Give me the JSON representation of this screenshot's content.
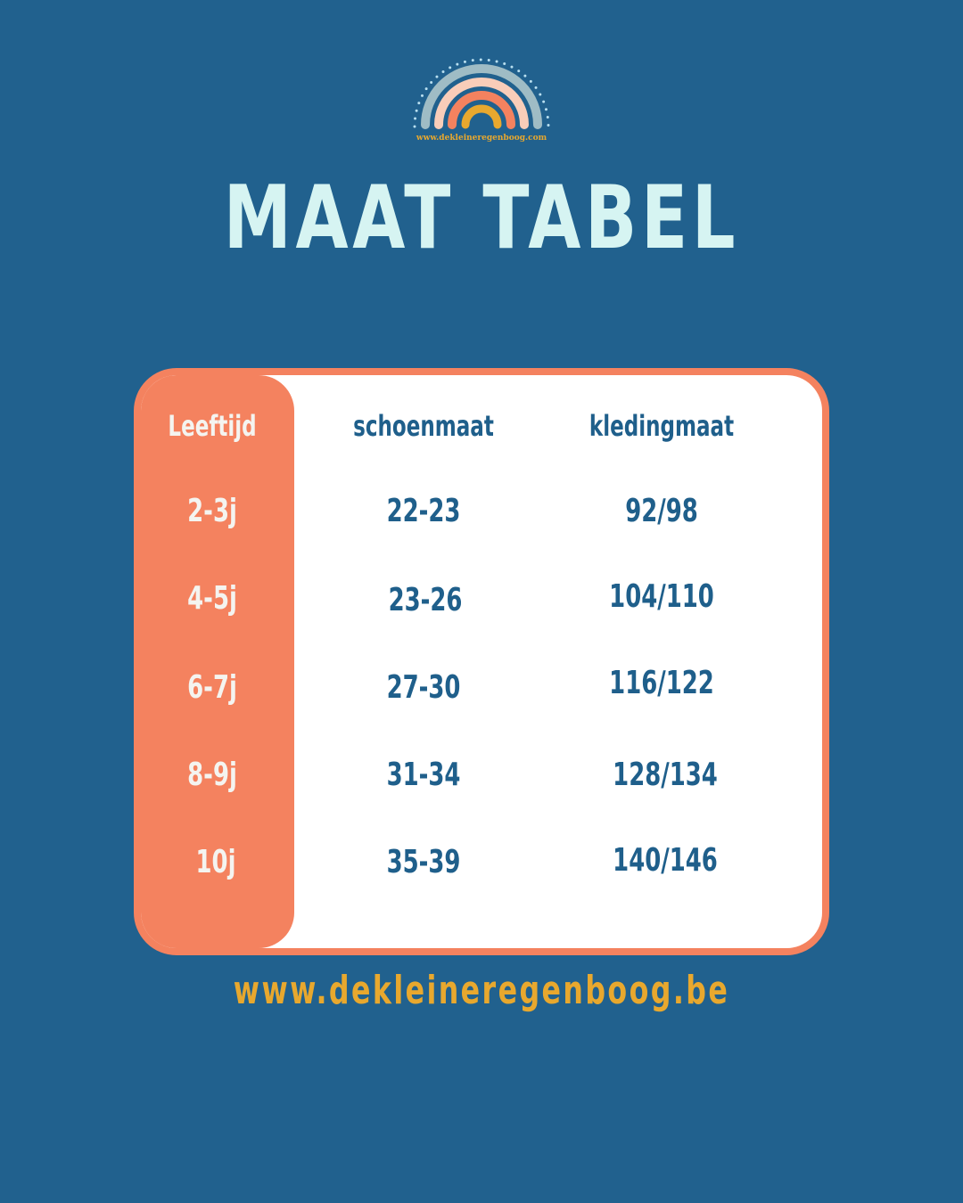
{
  "logo": {
    "text": "www.dekleineregenboog.com",
    "colors": [
      "#9fbcc5",
      "#f9cdb9",
      "#f4825f",
      "#e8a82e"
    ]
  },
  "title": "MAAT TABEL",
  "table": {
    "headers": [
      "Leeftijd",
      "schoenmaat",
      "kledingmaat"
    ],
    "rows": [
      [
        "2-3j",
        "22-23",
        "92/98"
      ],
      [
        "4-5j",
        "23-26",
        "104/110"
      ],
      [
        "6-7j",
        "27-30",
        "116/122"
      ],
      [
        "8-9j",
        "31-34",
        "128/134"
      ],
      [
        "10j",
        "35-39",
        "140/146"
      ]
    ]
  },
  "footer": "www.dekleineregenboog.be",
  "colors": {
    "background": "#21618e",
    "accent": "#f4825f",
    "title": "#d6f4f2",
    "footer": "#e8a82e",
    "text": "#1f5f8b"
  }
}
